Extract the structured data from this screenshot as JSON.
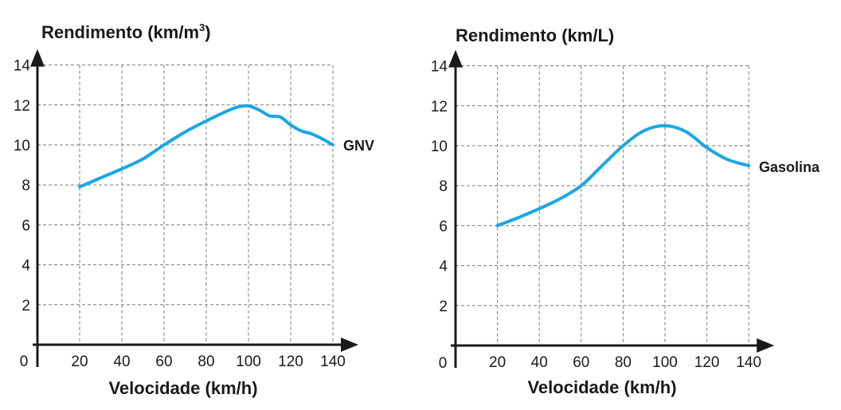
{
  "colors": {
    "curve": "#1aa7e6",
    "axis": "#1a1a1a",
    "grid": "#7a7a7a"
  },
  "chart_data": [
    {
      "type": "line",
      "ylabel": "Rendimento (km/m",
      "ylabel_sup": "3",
      "ylabel_close": ")",
      "xlabel": "Velocidade (km/h)",
      "origin_label": "0",
      "xlim": [
        0,
        140
      ],
      "ylim": [
        0,
        14
      ],
      "xticks": [
        20,
        40,
        60,
        80,
        100,
        120,
        140
      ],
      "yticks": [
        2,
        4,
        6,
        8,
        10,
        12,
        14
      ],
      "grid": true,
      "series": [
        {
          "name": "GNV",
          "x": [
            20,
            30,
            40,
            50,
            60,
            70,
            80,
            90,
            95,
            100,
            105,
            110,
            115,
            120,
            125,
            130,
            135,
            140
          ],
          "y": [
            7.9,
            8.35,
            8.8,
            9.3,
            10.0,
            10.65,
            11.2,
            11.7,
            11.9,
            11.95,
            11.75,
            11.45,
            11.4,
            11.0,
            10.7,
            10.55,
            10.3,
            10.0
          ]
        }
      ]
    },
    {
      "type": "line",
      "ylabel": "Rendimento (km/L)",
      "xlabel": "Velocidade (km/h)",
      "origin_label": "0",
      "xlim": [
        0,
        140
      ],
      "ylim": [
        0,
        14
      ],
      "xticks": [
        20,
        40,
        60,
        80,
        100,
        120,
        140
      ],
      "yticks": [
        2,
        4,
        6,
        8,
        10,
        12,
        14
      ],
      "grid": true,
      "series": [
        {
          "name": "Gasolina",
          "x": [
            20,
            30,
            40,
            50,
            60,
            70,
            80,
            90,
            100,
            110,
            120,
            130,
            140
          ],
          "y": [
            6.0,
            6.4,
            6.85,
            7.35,
            8.0,
            9.0,
            10.0,
            10.75,
            11.0,
            10.7,
            9.9,
            9.3,
            9.0
          ]
        }
      ]
    }
  ]
}
